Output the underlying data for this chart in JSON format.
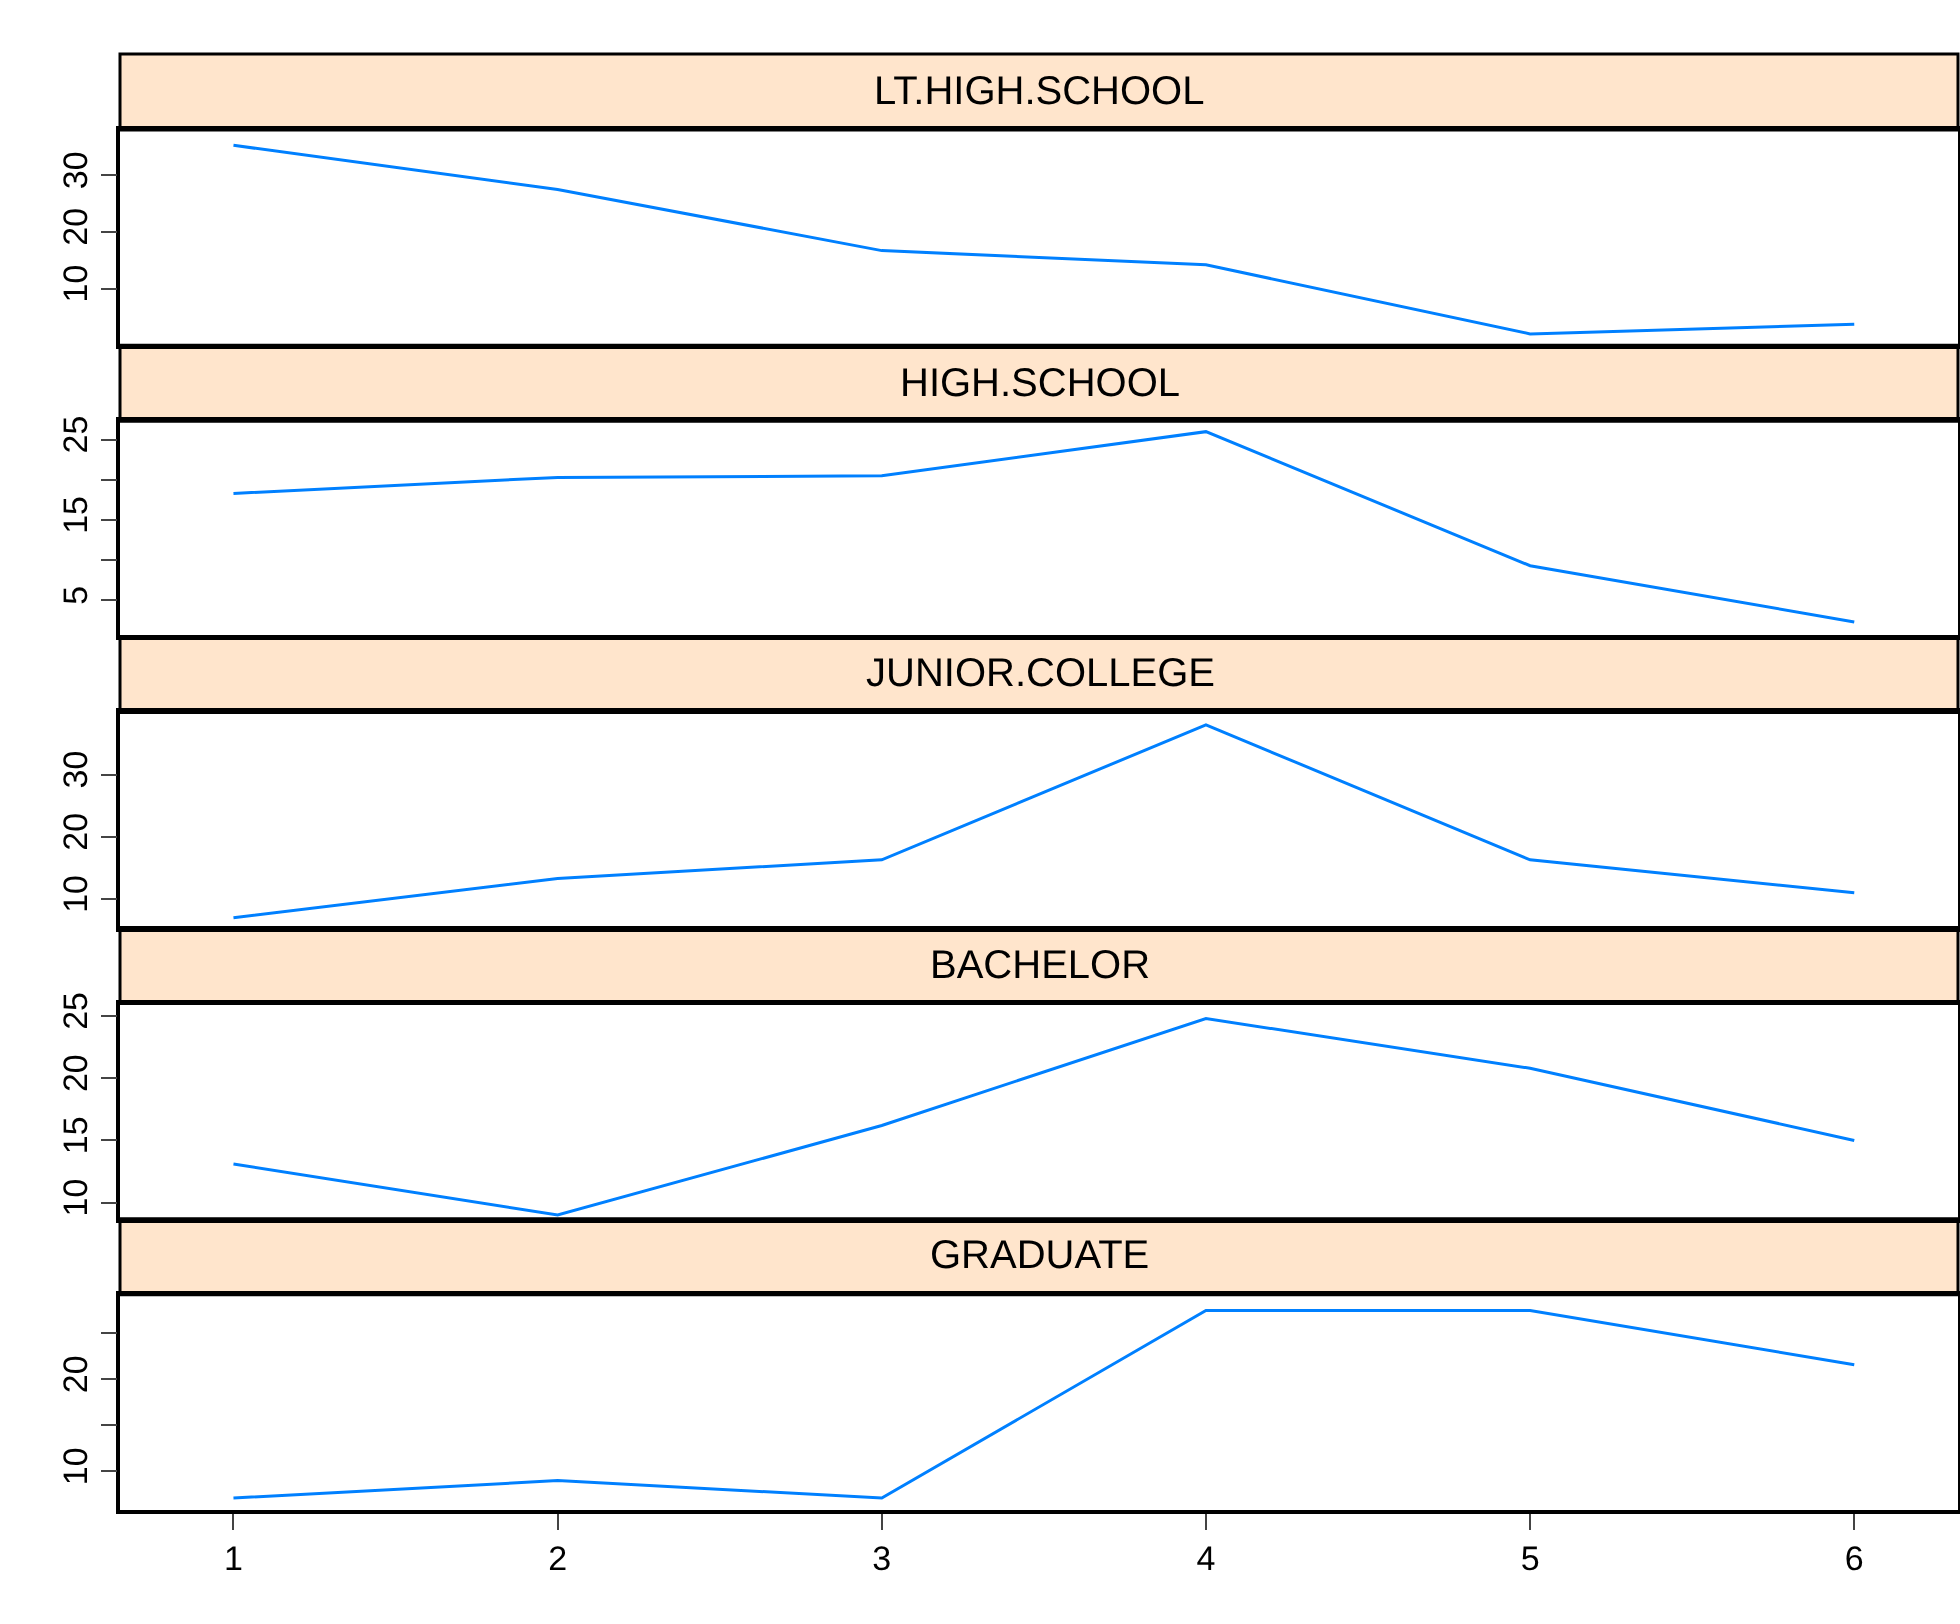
{
  "chart_data": [
    {
      "type": "line",
      "title": "LT.HIGH.SCHOOL",
      "x": [
        1,
        2,
        3,
        4,
        5,
        6
      ],
      "values": [
        35.3,
        27.5,
        16.7,
        14.2,
        2,
        3.7
      ],
      "color": "#0080ff",
      "xlim": [
        0.65,
        6.32
      ],
      "xticks": [
        1,
        2,
        3,
        4,
        5,
        6
      ],
      "ylim": [
        0,
        38
      ],
      "yticks": [
        10,
        20,
        30
      ],
      "tick_labels": "y"
    },
    {
      "type": "line",
      "title": "HIGH.SCHOOL",
      "x": [
        1,
        2,
        3,
        4,
        5,
        6
      ],
      "values": [
        18.3,
        20.3,
        20.5,
        26,
        9.3,
        2.3
      ],
      "color": "#0080ff",
      "xlim": [
        0.65,
        6.32
      ],
      "xticks": [
        1,
        2,
        3,
        4,
        5,
        6
      ],
      "ylim": [
        0.5,
        27.3
      ],
      "yticks": [
        5,
        {
          "value": 10,
          "label": null
        },
        15,
        {
          "value": 20,
          "label": null
        },
        25
      ],
      "tick_labels": "y"
    },
    {
      "type": "line",
      "title": "JUNIOR.COLLEGE",
      "x": [
        1,
        2,
        3,
        4,
        5,
        6
      ],
      "values": [
        7,
        13.3,
        16.3,
        38,
        16.3,
        11
      ],
      "color": "#0080ff",
      "xlim": [
        0.65,
        6.32
      ],
      "xticks": [
        1,
        2,
        3,
        4,
        5,
        6
      ],
      "ylim": [
        5.4,
        40
      ],
      "yticks": [
        10,
        20,
        30
      ],
      "tick_labels": "y"
    },
    {
      "type": "line",
      "title": "BACHELOR",
      "x": [
        1,
        2,
        3,
        4,
        5,
        6
      ],
      "values": [
        13.1,
        9,
        16.2,
        24.8,
        20.8,
        15
      ],
      "color": "#0080ff",
      "xlim": [
        0.65,
        6.32
      ],
      "xticks": [
        1,
        2,
        3,
        4,
        5,
        6
      ],
      "ylim": [
        8.7,
        26
      ],
      "yticks": [
        10,
        15,
        20,
        25
      ],
      "tick_labels": "y"
    },
    {
      "type": "line",
      "title": "GRADUATE",
      "x": [
        1,
        2,
        3,
        4,
        5,
        6
      ],
      "values": [
        7.1,
        9,
        7.1,
        27.5,
        27.5,
        21.6
      ],
      "color": "#0080ff",
      "xlim": [
        0.65,
        6.32
      ],
      "xticks": [
        1,
        2,
        3,
        4,
        5,
        6
      ],
      "ylim": [
        5.8,
        29.2
      ],
      "yticks": [
        10,
        {
          "value": 15,
          "label": null
        },
        20,
        {
          "value": 25,
          "label": null
        }
      ]
    }
  ]
}
